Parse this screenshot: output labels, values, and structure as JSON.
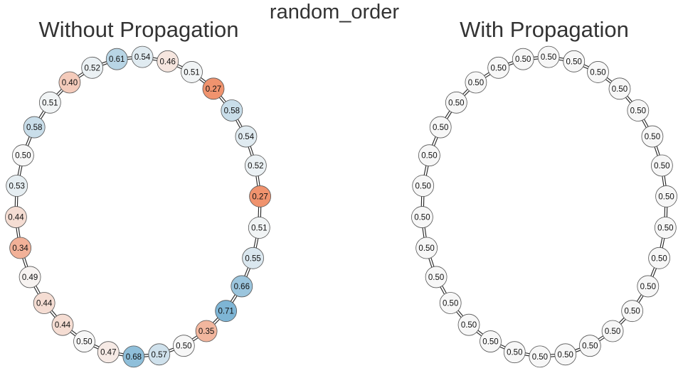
{
  "suptitle": "random_order",
  "panels": [
    {
      "title": "Without Propagation",
      "nodes": [
        "0.46",
        "0.51",
        "0.27",
        "0.58",
        "0.54",
        "0.52",
        "0.27",
        "0.51",
        "0.55",
        "0.66",
        "0.71",
        "0.35",
        "0.50",
        "0.57",
        "0.68",
        "0.47",
        "0.50",
        "0.44",
        "0.44",
        "0.49",
        "0.34",
        "0.44",
        "0.53",
        "0.50",
        "0.58",
        "0.51",
        "0.40",
        "0.52",
        "0.61",
        "0.54"
      ]
    },
    {
      "title": "With Propagation",
      "nodes": [
        "0.50",
        "0.50",
        "0.50",
        "0.50",
        "0.50",
        "0.50",
        "0.50",
        "0.50",
        "0.50",
        "0.50",
        "0.50",
        "0.50",
        "0.50",
        "0.50",
        "0.50",
        "0.50",
        "0.50",
        "0.50",
        "0.50",
        "0.50",
        "0.50",
        "0.50",
        "0.50",
        "0.50",
        "0.50",
        "0.50",
        "0.50",
        "0.50",
        "0.50",
        "0.50"
      ]
    }
  ],
  "colors": {
    "low": "#ef8a62",
    "mid": "#f7f7f7",
    "high": "#67a9cf",
    "edge": "#222222",
    "title": "#333333"
  }
}
